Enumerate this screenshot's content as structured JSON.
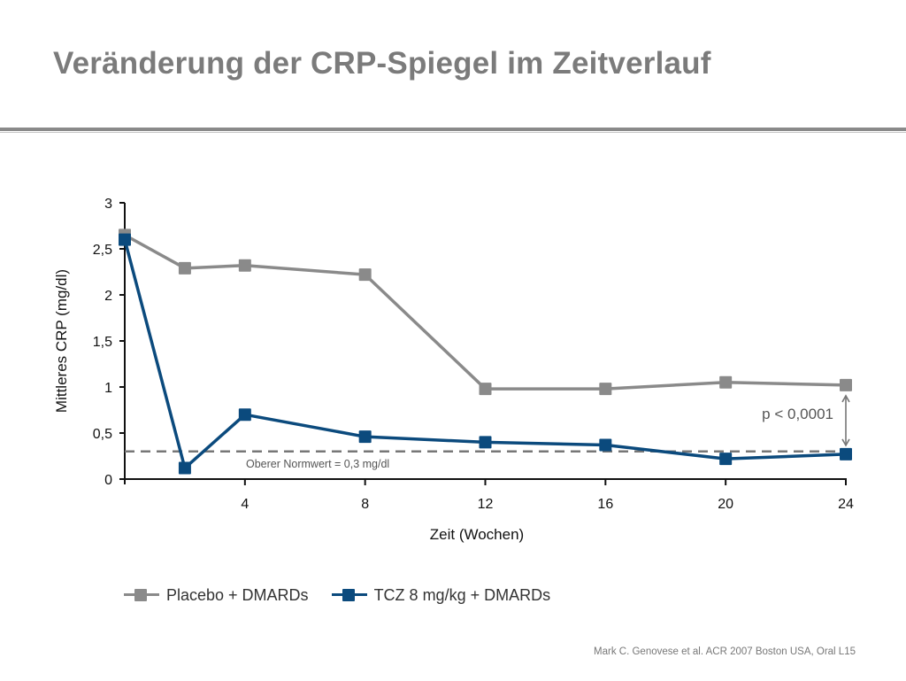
{
  "slide": {
    "title": "Veränderung der CRP-Spiegel im Zeitverlauf",
    "source": "Mark C. Genovese et al. ACR 2007 Boston USA, Oral L15"
  },
  "chart_data": {
    "type": "line",
    "title": "Veränderung der CRP-Spiegel im Zeitverlauf",
    "xlabel": "Zeit (Wochen)",
    "ylabel": "Mittleres CRP (mg/dl)",
    "xlim": [
      0,
      24
    ],
    "ylim": [
      0,
      3
    ],
    "x_ticks": [
      4,
      8,
      12,
      16,
      20,
      24
    ],
    "y_ticks": [
      0,
      0.5,
      1,
      1.5,
      2,
      2.5,
      3
    ],
    "y_tick_labels": [
      "0",
      "0,5",
      "1",
      "1,5",
      "2",
      "2,5",
      "3"
    ],
    "grid": false,
    "legend_position": "bottom",
    "series": [
      {
        "name": "Placebo + DMARDs",
        "color": "#8a8a8a",
        "x": [
          0,
          2,
          4,
          8,
          12,
          16,
          20,
          24
        ],
        "y": [
          2.65,
          2.29,
          2.32,
          2.22,
          0.98,
          0.98,
          1.05,
          1.02
        ]
      },
      {
        "name": "TCZ 8 mg/kg + DMARDs",
        "color": "#0b4a7d",
        "x": [
          0,
          2,
          4,
          8,
          12,
          16,
          20,
          24
        ],
        "y": [
          2.6,
          0.12,
          0.7,
          0.46,
          0.4,
          0.37,
          0.22,
          0.27
        ]
      }
    ],
    "reference_line": {
      "y": 0.3,
      "label": "Oberer Normwert = 0,3 mg/dl",
      "color": "#777777"
    },
    "annotation": {
      "text": "p < 0,0001"
    }
  }
}
